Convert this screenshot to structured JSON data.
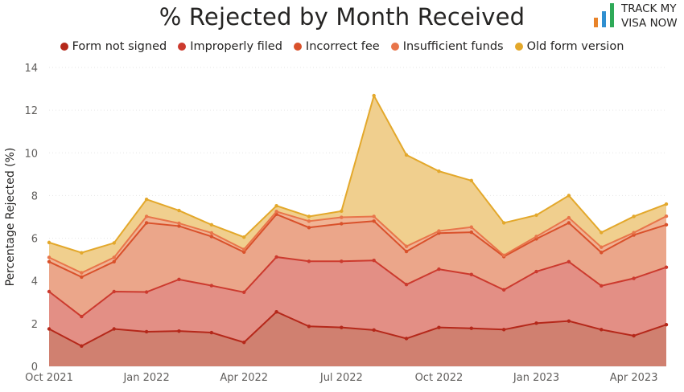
{
  "title": "% Rejected by Month Received",
  "logo": {
    "line1": "TRACK MY",
    "line2": "VISA NOW",
    "colors": [
      "#e8832a",
      "#2f8fd0",
      "#2eaa58"
    ]
  },
  "chart_data": {
    "type": "area",
    "stacked": true,
    "title": "% Rejected by Month Received",
    "xlabel": "",
    "ylabel": "Percentage Rejected (%)",
    "ylim": [
      0,
      14
    ],
    "yticks": [
      0,
      2,
      4,
      6,
      8,
      10,
      12,
      14
    ],
    "xtick_labels": [
      "Oct 2021",
      "Jan 2022",
      "Apr 2022",
      "Jul 2022",
      "Oct 2022",
      "Jan 2023",
      "Apr 2023"
    ],
    "xtick_indices": [
      0,
      3,
      6,
      9,
      12,
      15,
      18
    ],
    "x": [
      "Oct 2021",
      "Nov 2021",
      "Dec 2021",
      "Jan 2022",
      "Feb 2022",
      "Mar 2022",
      "Apr 2022",
      "May 2022",
      "Jun 2022",
      "Jul 2022",
      "Aug 2022",
      "Sep 2022",
      "Oct 2022",
      "Nov 2022",
      "Dec 2022",
      "Jan 2023",
      "Feb 2023",
      "Mar 2023",
      "Apr 2023",
      "May 2023"
    ],
    "grid": true,
    "legend": "top",
    "series": [
      {
        "name": "Form not signed",
        "color": "#b5281a",
        "fill": "#d08070",
        "cumulative": [
          1.75,
          0.95,
          1.75,
          1.62,
          1.65,
          1.58,
          1.12,
          2.55,
          1.87,
          1.82,
          1.7,
          1.3,
          1.82,
          1.78,
          1.72,
          2.02,
          2.12,
          1.72,
          1.43,
          1.95
        ]
      },
      {
        "name": "Improperly filed",
        "color": "#cc3a2e",
        "fill": "#e38f85",
        "cumulative": [
          3.5,
          2.33,
          3.5,
          3.48,
          4.07,
          3.78,
          3.47,
          5.12,
          4.92,
          4.92,
          4.96,
          3.83,
          4.55,
          4.3,
          3.58,
          4.44,
          4.9,
          3.77,
          4.12,
          4.64
        ]
      },
      {
        "name": "Incorrect fee",
        "color": "#d9512b",
        "fill": "#eba68a",
        "cumulative": [
          4.9,
          4.18,
          4.9,
          6.72,
          6.57,
          6.08,
          5.35,
          7.12,
          6.5,
          6.68,
          6.8,
          5.38,
          6.24,
          6.28,
          5.14,
          5.97,
          6.72,
          5.33,
          6.15,
          6.63
        ]
      },
      {
        "name": "Insufficient funds",
        "color": "#e8754a",
        "fill": "#f0b495",
        "cumulative": [
          5.1,
          4.38,
          5.1,
          7.02,
          6.7,
          6.25,
          5.48,
          7.25,
          6.8,
          6.98,
          7.02,
          5.62,
          6.34,
          6.52,
          5.2,
          6.08,
          6.96,
          5.58,
          6.26,
          7.03
        ]
      },
      {
        "name": "Old form version",
        "color": "#e3a82b",
        "fill": "#f0cf8e",
        "cumulative": [
          5.8,
          5.32,
          5.78,
          7.82,
          7.3,
          6.63,
          6.05,
          7.52,
          7.02,
          7.27,
          12.68,
          9.9,
          9.14,
          8.7,
          6.72,
          7.08,
          8.0,
          6.27,
          7.02,
          7.6
        ]
      }
    ]
  }
}
